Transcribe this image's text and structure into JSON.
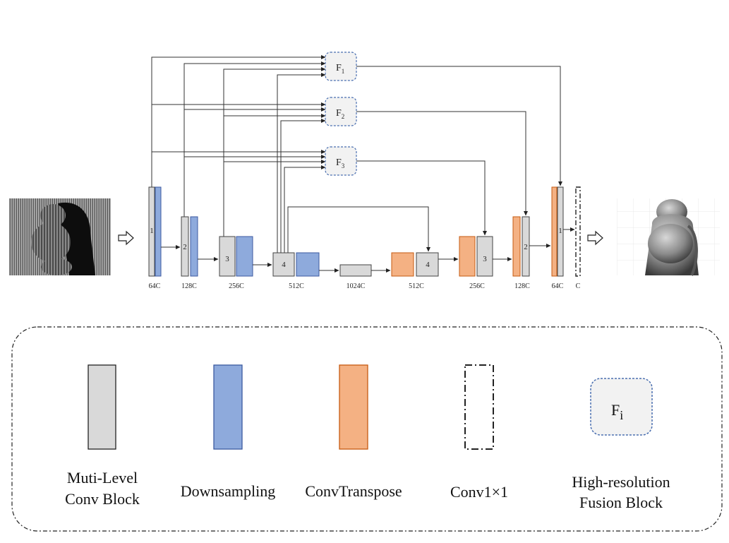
{
  "colors": {
    "conv_fill": "#d9d9d9",
    "down_fill": "#8eaadc",
    "down_stroke": "#3c5aa0",
    "up_fill": "#f4b183",
    "up_stroke": "#c55a11",
    "fusion_fill": "#f2f2f2",
    "fusion_stroke": "#4a6fb0"
  },
  "fusion_blocks": [
    {
      "main": "F",
      "sub": "1"
    },
    {
      "main": "F",
      "sub": "2"
    },
    {
      "main": "F",
      "sub": "3"
    }
  ],
  "conv_block_numbers": [
    "1",
    "2",
    "3",
    "4",
    "4",
    "3",
    "2",
    "1"
  ],
  "channel_labels": [
    "64C",
    "128C",
    "256C",
    "512C",
    "1024C",
    "512C",
    "256C",
    "128C",
    "64C",
    "C"
  ],
  "io_arrows": [
    "input-arrow-icon",
    "output-arrow-icon"
  ],
  "input_image": "striped-pattern-projection-photo",
  "output_image": "reconstructed-3d-depth-render",
  "legend": {
    "conv_label_1": "Muti-Level",
    "conv_label_2": "Conv Block",
    "down_label": "Downsampling",
    "up_label": "ConvTranspose",
    "conv1x1_label": "Conv1×1",
    "fusion_symbol_main": "F",
    "fusion_symbol_sub": "i",
    "fusion_label_1": "High-resolution",
    "fusion_label_2": "Fusion Block"
  }
}
